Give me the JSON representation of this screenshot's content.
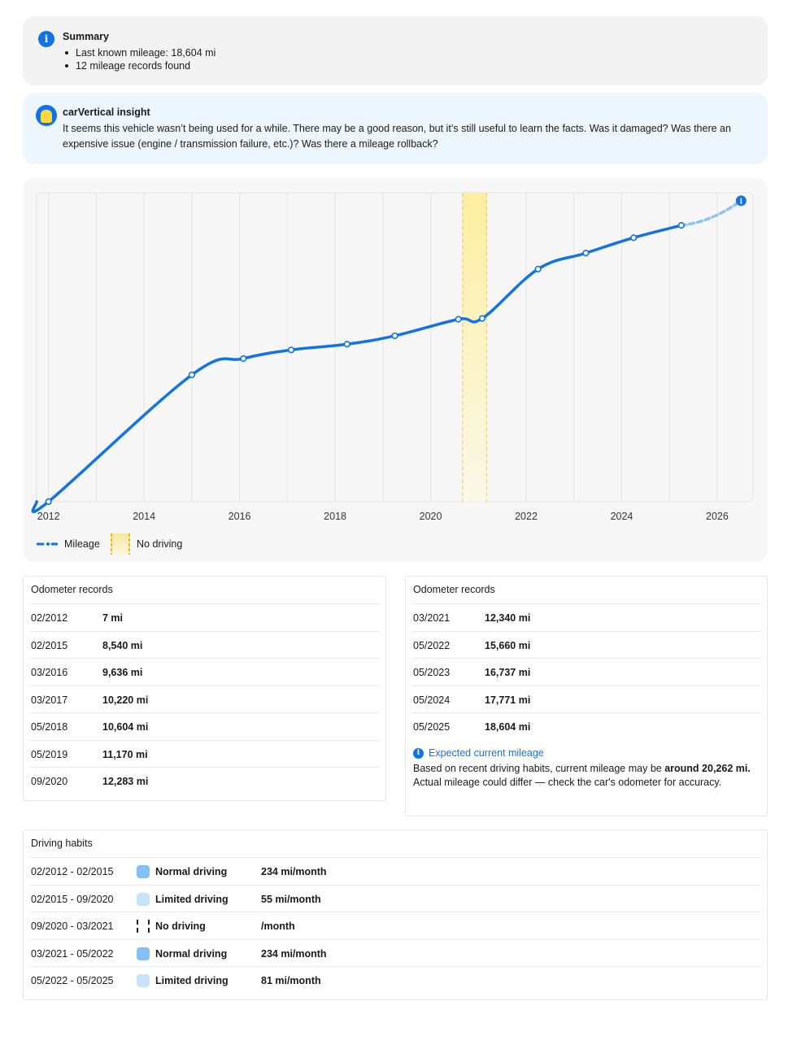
{
  "summary": {
    "title": "Summary",
    "items": [
      "Last known mileage: 18,604 mi",
      "12 mileage records found"
    ]
  },
  "insight": {
    "title": "carVertical insight",
    "text": "It seems this vehicle wasn’t being used for a while. There may be a good reason, but it’s still useful to learn the facts. Was it damaged? Was there an expensive issue (engine / transmission failure, etc.)? Was there a mileage rollback?"
  },
  "chart_data": {
    "type": "line",
    "x_ticks": [
      "2012",
      "2014",
      "2016",
      "2018",
      "2020",
      "2022",
      "2024",
      "2026"
    ],
    "xlim": [
      2011.75,
      2026.75
    ],
    "ylim": [
      0,
      20800
    ],
    "series": [
      {
        "name": "Mileage",
        "points": [
          {
            "x": 2011.75,
            "y": 7
          },
          {
            "x": 2012.0,
            "y": 7
          },
          {
            "x": 2015.0,
            "y": 8540
          },
          {
            "x": 2016.08,
            "y": 9636
          },
          {
            "x": 2017.08,
            "y": 10220
          },
          {
            "x": 2018.25,
            "y": 10604
          },
          {
            "x": 2019.25,
            "y": 11170
          },
          {
            "x": 2020.58,
            "y": 12283
          },
          {
            "x": 2021.08,
            "y": 12340
          },
          {
            "x": 2022.25,
            "y": 15660
          },
          {
            "x": 2023.25,
            "y": 16737
          },
          {
            "x": 2024.25,
            "y": 17771
          },
          {
            "x": 2025.25,
            "y": 18604
          }
        ],
        "projection": [
          {
            "x": 2025.25,
            "y": 18604
          },
          {
            "x": 2026.5,
            "y": 20262
          }
        ]
      }
    ],
    "no_driving_period": {
      "from": 2020.67,
      "to": 2021.17
    },
    "colors": {
      "line": "#1173e4",
      "projection": "#8ec2f5",
      "band": "#fcf0b0",
      "band_edge": "#f1c84a",
      "grid": "#e3e3e3"
    },
    "legend": [
      "Mileage",
      "No driving"
    ],
    "grid": true,
    "legend_position": "bottom-left"
  },
  "odometer_left": {
    "title": "Odometer records",
    "rows": [
      {
        "date": "02/2012",
        "value": "7 mi"
      },
      {
        "date": "02/2015",
        "value": "8,540 mi"
      },
      {
        "date": "03/2016",
        "value": "9,636 mi"
      },
      {
        "date": "03/2017",
        "value": "10,220 mi"
      },
      {
        "date": "05/2018",
        "value": "10,604 mi"
      },
      {
        "date": "05/2019",
        "value": "11,170 mi"
      },
      {
        "date": "09/2020",
        "value": "12,283 mi"
      }
    ]
  },
  "odometer_right": {
    "title": "Odometer records",
    "rows": [
      {
        "date": "03/2021",
        "value": "12,340 mi"
      },
      {
        "date": "05/2022",
        "value": "15,660 mi"
      },
      {
        "date": "05/2023",
        "value": "16,737 mi"
      },
      {
        "date": "05/2024",
        "value": "17,771 mi"
      },
      {
        "date": "05/2025",
        "value": "18,604 mi"
      }
    ],
    "expected_title": "Expected current mileage",
    "expected_pre": "Based on recent driving habits, current mileage may be ",
    "expected_bold": "around 20,262 mi.",
    "expected_post": " Actual mileage could differ — check the car's odometer for accuracy."
  },
  "habits": {
    "title": "Driving habits",
    "rows": [
      {
        "period": "02/2012 - 02/2015",
        "type": "Normal driving",
        "kind": "normal",
        "rate": "234 mi/month"
      },
      {
        "period": "02/2015 - 09/2020",
        "type": "Limited driving",
        "kind": "limited",
        "rate": "55 mi/month"
      },
      {
        "period": "09/2020 - 03/2021",
        "type": "No driving",
        "kind": "none",
        "rate": "/month"
      },
      {
        "period": "03/2021 - 05/2022",
        "type": "Normal driving",
        "kind": "normal",
        "rate": "234 mi/month"
      },
      {
        "period": "05/2022 - 05/2025",
        "type": "Limited driving",
        "kind": "limited",
        "rate": "81 mi/month"
      }
    ]
  }
}
